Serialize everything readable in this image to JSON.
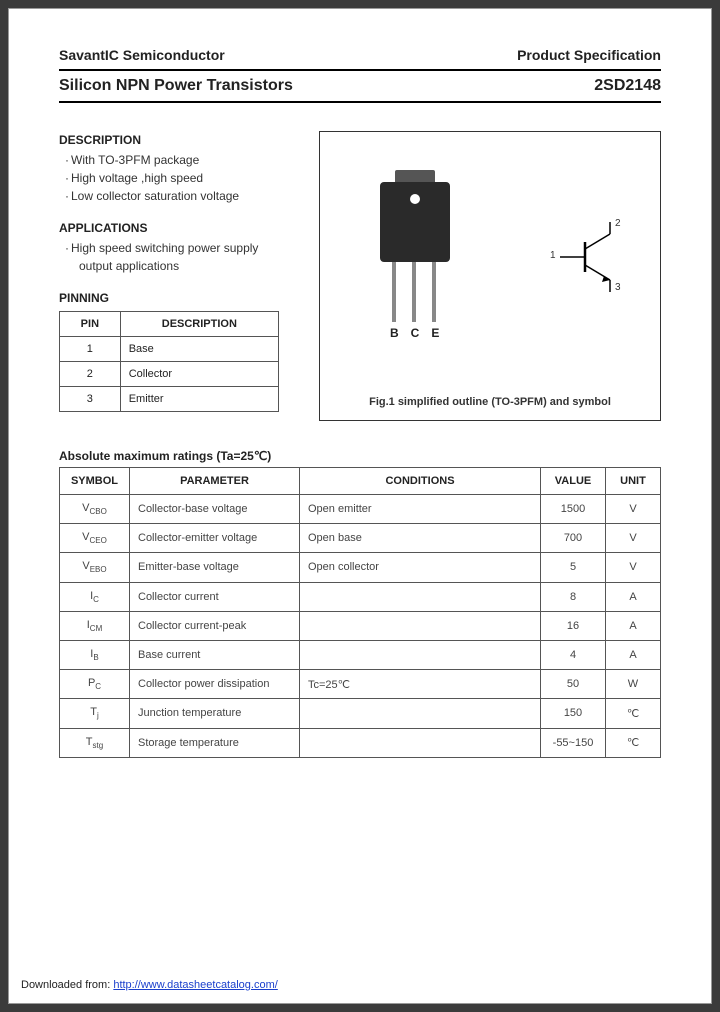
{
  "header": {
    "company": "SavantIC Semiconductor",
    "spec": "Product Specification"
  },
  "title": {
    "left": "Silicon NPN Power Transistors",
    "right": "2SD2148"
  },
  "description": {
    "heading": "DESCRIPTION",
    "items": [
      "With TO-3PFM package",
      "High voltage ,high speed",
      "Low collector saturation voltage"
    ]
  },
  "applications": {
    "heading": "APPLICATIONS",
    "line1": "High speed switching power supply",
    "line2": "output applications"
  },
  "pinning": {
    "heading": "PINNING",
    "cols": [
      "PIN",
      "DESCRIPTION"
    ],
    "rows": [
      [
        "1",
        "Base"
      ],
      [
        "2",
        "Collector"
      ],
      [
        "3",
        "Emitter"
      ]
    ]
  },
  "figure": {
    "lead_labels": [
      "B",
      "C",
      "E"
    ],
    "sym_labels": {
      "one": "1",
      "two": "2",
      "three": "3"
    },
    "caption": "Fig.1 simplified outline (TO-3PFM) and symbol"
  },
  "ratings": {
    "heading": "Absolute maximum ratings (Ta=25℃)",
    "cols": [
      "SYMBOL",
      "PARAMETER",
      "CONDITIONS",
      "VALUE",
      "UNIT"
    ],
    "rows": [
      {
        "sym": "V",
        "sub": "CBO",
        "par": "Collector-base voltage",
        "cond": "Open emitter",
        "val": "1500",
        "unit": "V"
      },
      {
        "sym": "V",
        "sub": "CEO",
        "par": "Collector-emitter voltage",
        "cond": "Open base",
        "val": "700",
        "unit": "V"
      },
      {
        "sym": "V",
        "sub": "EBO",
        "par": "Emitter-base voltage",
        "cond": "Open collector",
        "val": "5",
        "unit": "V"
      },
      {
        "sym": "I",
        "sub": "C",
        "par": "Collector current",
        "cond": "",
        "val": "8",
        "unit": "A"
      },
      {
        "sym": "I",
        "sub": "CM",
        "par": "Collector current-peak",
        "cond": "",
        "val": "16",
        "unit": "A"
      },
      {
        "sym": "I",
        "sub": "B",
        "par": "Base current",
        "cond": "",
        "val": "4",
        "unit": "A"
      },
      {
        "sym": "P",
        "sub": "C",
        "par": "Collector power dissipation",
        "cond": "Tc=25℃",
        "val": "50",
        "unit": "W"
      },
      {
        "sym": "T",
        "sub": "j",
        "par": "Junction temperature",
        "cond": "",
        "val": "150",
        "unit": "℃"
      },
      {
        "sym": "T",
        "sub": "stg",
        "par": "Storage temperature",
        "cond": "",
        "val": "-55~150",
        "unit": "℃"
      }
    ]
  },
  "footer": {
    "prefix": "Downloaded from: ",
    "url": "http://www.datasheetcatalog.com/"
  }
}
